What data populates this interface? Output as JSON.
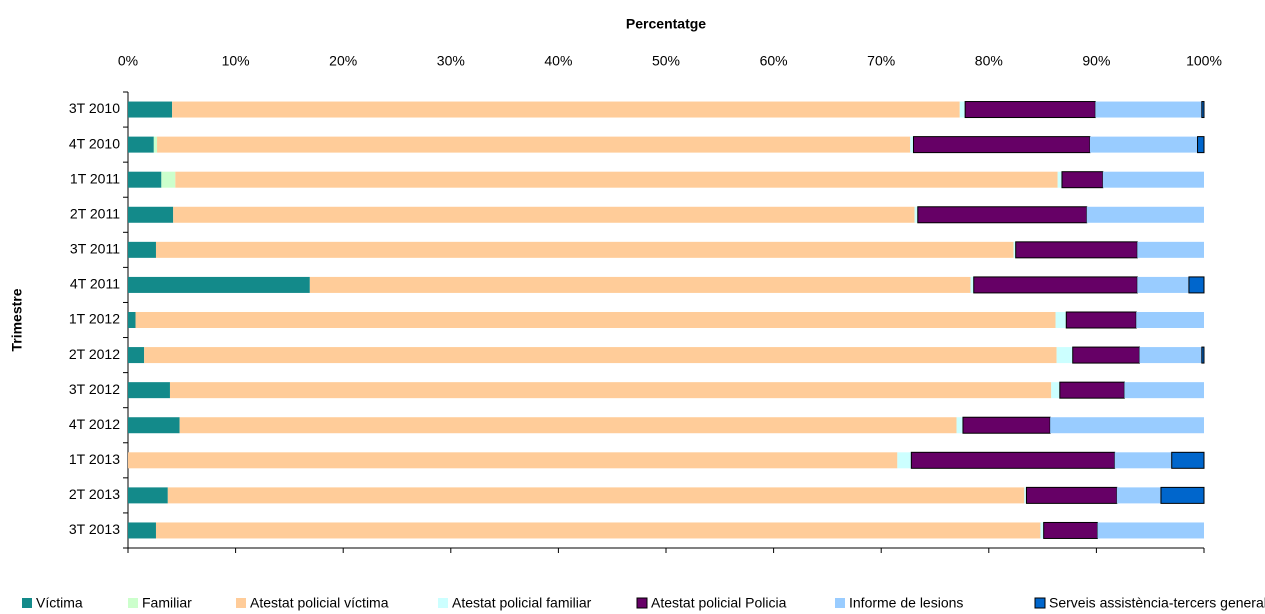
{
  "chart_data": {
    "type": "stacked_barh",
    "x_label": "Percentatge",
    "y_label": "Trimestre",
    "categories": [
      "3T 2010",
      "4T 2010",
      "1T 2011",
      "2T 2011",
      "3T 2011",
      "4T 2011",
      "1T 2012",
      "2T 2012",
      "3T 2012",
      "4T 2012",
      "1T 2013",
      "2T 2013",
      "3T 2013"
    ],
    "series": [
      {
        "name": "Víctima",
        "color": "#138a8a",
        "values": [
          4.1,
          2.4,
          3.1,
          4.2,
          2.6,
          16.9,
          0.7,
          1.5,
          3.9,
          4.8,
          0,
          3.7,
          2.6
        ]
      },
      {
        "name": "Familiar",
        "color": "#ccffcc",
        "values": [
          0,
          0.3,
          1.3,
          0,
          0,
          0,
          0,
          0,
          0,
          0,
          0,
          0,
          0
        ]
      },
      {
        "name": "Atestat policial víctima",
        "color": "#ffcc99",
        "values": [
          73.2,
          70.0,
          82.0,
          68.9,
          79.7,
          61.4,
          85.5,
          84.8,
          81.9,
          72.2,
          71.5,
          79.6,
          82.2
        ]
      },
      {
        "name": "Atestat policial familiar",
        "color": "#ccffff",
        "values": [
          0.5,
          0.3,
          0.4,
          0.3,
          0.2,
          0.3,
          1.0,
          1.5,
          0.8,
          0.6,
          1.3,
          0.2,
          0.3
        ]
      },
      {
        "name": "Atestat policial Policia",
        "color": "#660066",
        "values": [
          12.1,
          16.4,
          3.8,
          15.7,
          11.3,
          15.2,
          6.5,
          6.2,
          6.0,
          8.1,
          18.9,
          8.4,
          5.0
        ]
      },
      {
        "name": "Informe de lesions",
        "color": "#99ccff",
        "values": [
          9.9,
          10.0,
          9.4,
          10.9,
          6.2,
          4.8,
          6.3,
          5.8,
          7.4,
          14.3,
          5.3,
          4.1,
          9.9
        ]
      },
      {
        "name": "Serveis assistència-tercers general",
        "color": "#0066cc",
        "values": [
          0.2,
          0.6,
          0,
          0,
          0,
          1.4,
          0,
          0.2,
          0,
          0,
          3.0,
          4.0,
          0
        ]
      }
    ],
    "xlim": [
      0,
      100
    ],
    "xticks": [
      {
        "value": 0,
        "label": "0%"
      },
      {
        "value": 10,
        "label": "10%"
      },
      {
        "value": 20,
        "label": "20%"
      },
      {
        "value": 30,
        "label": "30%"
      },
      {
        "value": 40,
        "label": "40%"
      },
      {
        "value": 50,
        "label": "50%"
      },
      {
        "value": 60,
        "label": "60%"
      },
      {
        "value": 70,
        "label": "70%"
      },
      {
        "value": 80,
        "label": "80%"
      },
      {
        "value": 90,
        "label": "90%"
      },
      {
        "value": 100,
        "label": "100%"
      }
    ],
    "legend": "bottom"
  }
}
